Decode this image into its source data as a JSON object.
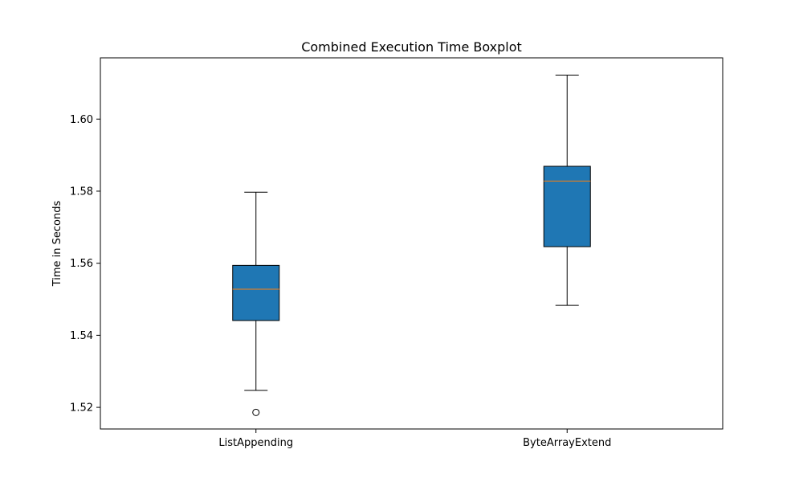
{
  "chart_data": {
    "type": "boxplot",
    "title": "Combined Execution Time Boxplot",
    "xlabel": "",
    "ylabel": "Time in Seconds",
    "ylim": [
      1.514,
      1.617
    ],
    "yticks": [
      1.52,
      1.54,
      1.56,
      1.58,
      1.6
    ],
    "ytick_labels": [
      "1.52",
      "1.54",
      "1.56",
      "1.58",
      "1.60"
    ],
    "categories": [
      "ListAppending",
      "ByteArrayExtend"
    ],
    "boxes": [
      {
        "category": "ListAppending",
        "whisker_low": 1.5247,
        "q1": 1.5441,
        "median": 1.5528,
        "q3": 1.5594,
        "whisker_high": 1.5797,
        "outliers": [
          1.5186
        ]
      },
      {
        "category": "ByteArrayExtend",
        "whisker_low": 1.5483,
        "q1": 1.5646,
        "median": 1.5828,
        "q3": 1.5869,
        "whisker_high": 1.6122,
        "outliers": []
      }
    ],
    "colors": {
      "box_fill": "#1f77b4",
      "median": "#ff7f0e",
      "lines": "#000000"
    },
    "grid": false,
    "legend": "none"
  }
}
